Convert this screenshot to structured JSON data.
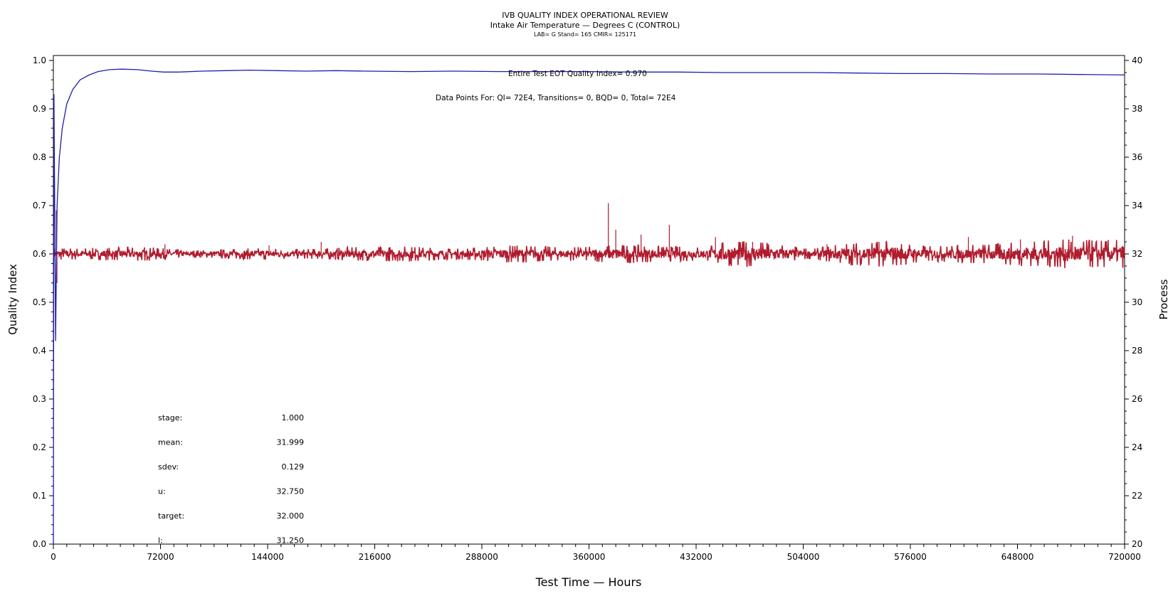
{
  "chart_data": {
    "type": "line",
    "title": "IVB QUALITY INDEX OPERATIONAL REVIEW",
    "subtitle": "Intake Air Temperature — Degrees C (CONTROL)",
    "subtitle2": "LAB= G Stand= 165 CMIR= 125171",
    "xlabel": "Test Time — Hours",
    "ylabel": "Quality Index",
    "y2label": "Process",
    "xlim": [
      0,
      720000
    ],
    "ylim": [
      0,
      1.0
    ],
    "y2lim": [
      20,
      40
    ],
    "grid": false,
    "x_ticks": [
      "0",
      "72000",
      "144000",
      "216000",
      "288000",
      "360000",
      "432000",
      "504000",
      "576000",
      "648000",
      "720000"
    ],
    "y_ticks": [
      "0.0",
      "0.1",
      "0.2",
      "0.3",
      "0.4",
      "0.5",
      "0.6",
      "0.7",
      "0.8",
      "0.9",
      "1.0"
    ],
    "y2_ticks": [
      "20",
      "22",
      "24",
      "26",
      "28",
      "30",
      "32",
      "34",
      "36",
      "38",
      "40"
    ],
    "annotations": {
      "eot": "Entire Test EOT Quality Index=   0.970",
      "points": "Data Points For: QI=  72E4, Transitions=      0, BQD=      0, Total=  72E4"
    },
    "stats": [
      {
        "label": "stage:",
        "value": "1.000"
      },
      {
        "label": "mean:",
        "value": "31.999"
      },
      {
        "label": "sdev:",
        "value": "0.129"
      },
      {
        "label": "u:",
        "value": "32.750"
      },
      {
        "label": "target:",
        "value": "32.000"
      },
      {
        "label": "l:",
        "value": "31.250"
      }
    ],
    "series": [
      {
        "axis": "left",
        "color": "#1f1fa8",
        "points": [
          [
            0,
            0.0
          ],
          [
            400,
            0.93
          ],
          [
            1500,
            0.42
          ],
          [
            2500,
            0.7
          ],
          [
            4000,
            0.8
          ],
          [
            6000,
            0.86
          ],
          [
            9000,
            0.91
          ],
          [
            13000,
            0.94
          ],
          [
            18000,
            0.96
          ],
          [
            24000,
            0.97
          ],
          [
            30000,
            0.977
          ],
          [
            38000,
            0.981
          ],
          [
            46000,
            0.982
          ],
          [
            56000,
            0.981
          ],
          [
            66000,
            0.978
          ],
          [
            74000,
            0.976
          ],
          [
            84000,
            0.976
          ],
          [
            100000,
            0.978
          ],
          [
            116000,
            0.979
          ],
          [
            132000,
            0.98
          ],
          [
            150000,
            0.979
          ],
          [
            170000,
            0.978
          ],
          [
            190000,
            0.979
          ],
          [
            210000,
            0.978
          ],
          [
            240000,
            0.977
          ],
          [
            270000,
            0.978
          ],
          [
            300000,
            0.977
          ],
          [
            330000,
            0.977
          ],
          [
            360000,
            0.977
          ],
          [
            390000,
            0.976
          ],
          [
            420000,
            0.976
          ],
          [
            450000,
            0.975
          ],
          [
            480000,
            0.975
          ],
          [
            510000,
            0.975
          ],
          [
            540000,
            0.974
          ],
          [
            570000,
            0.973
          ],
          [
            600000,
            0.973
          ],
          [
            630000,
            0.972
          ],
          [
            660000,
            0.972
          ],
          [
            690000,
            0.971
          ],
          [
            720000,
            0.97
          ]
        ]
      },
      {
        "axis": "right",
        "color": "#b01c2e",
        "target": 32.0,
        "envelope": [
          [
            0,
            0.26
          ],
          [
            30000,
            0.25
          ],
          [
            60000,
            0.3
          ],
          [
            90000,
            0.15
          ],
          [
            110000,
            0.18
          ],
          [
            140000,
            0.25
          ],
          [
            170000,
            0.2
          ],
          [
            200000,
            0.28
          ],
          [
            240000,
            0.32
          ],
          [
            270000,
            0.22
          ],
          [
            300000,
            0.35
          ],
          [
            320000,
            0.36
          ],
          [
            340000,
            0.28
          ],
          [
            360000,
            0.3
          ],
          [
            380000,
            0.4
          ],
          [
            410000,
            0.32
          ],
          [
            440000,
            0.3
          ],
          [
            450000,
            0.5
          ],
          [
            470000,
            0.55
          ],
          [
            490000,
            0.4
          ],
          [
            510000,
            0.2
          ],
          [
            530000,
            0.45
          ],
          [
            560000,
            0.55
          ],
          [
            590000,
            0.32
          ],
          [
            620000,
            0.4
          ],
          [
            650000,
            0.5
          ],
          [
            680000,
            0.6
          ],
          [
            720000,
            0.58
          ]
        ],
        "spikes": [
          [
            2000,
            33.8
          ],
          [
            2400,
            30.8
          ],
          [
            75000,
            32.4
          ],
          [
            145000,
            32.35
          ],
          [
            180000,
            32.5
          ],
          [
            373000,
            34.1
          ],
          [
            378000,
            33.0
          ],
          [
            395000,
            32.8
          ],
          [
            414000,
            33.2
          ],
          [
            445000,
            32.7
          ],
          [
            470000,
            32.5
          ],
          [
            520000,
            32.4
          ],
          [
            555000,
            32.5
          ],
          [
            615000,
            32.7
          ],
          [
            650000,
            32.6
          ],
          [
            685000,
            32.75
          ]
        ]
      }
    ]
  }
}
